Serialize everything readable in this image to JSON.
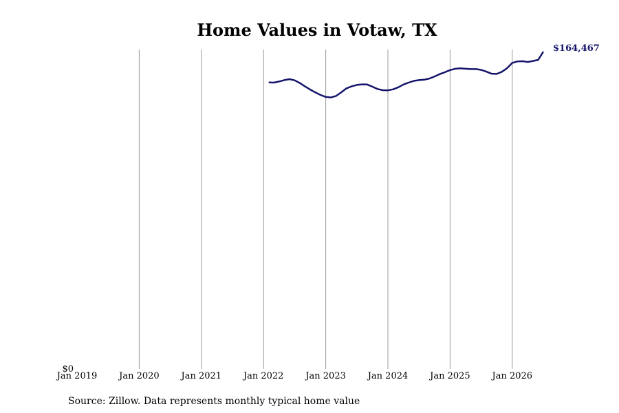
{
  "chart_data": {
    "type": "line",
    "title": "Home Values in Votaw, TX",
    "xlabel": "",
    "ylabel": "",
    "x_tick_labels": [
      "Jan 2019",
      "Jan 2020",
      "Jan 2021",
      "Jan 2022",
      "Jan 2023",
      "Jan 2024",
      "Jan 2025",
      "Jan 2026"
    ],
    "y_tick_labels": [
      "$0"
    ],
    "y_tick_values": [
      0
    ],
    "grid": "vertical",
    "line_color": "#14146b",
    "end_label": "$164,467",
    "series": [
      {
        "x": [
          "2022-02",
          "2022-03",
          "2022-04",
          "2022-05",
          "2022-06",
          "2022-07",
          "2022-08",
          "2022-09",
          "2022-10",
          "2022-11",
          "2022-12",
          "2023-01",
          "2023-02",
          "2023-03",
          "2023-04",
          "2023-05",
          "2023-06",
          "2023-07",
          "2023-08",
          "2023-09",
          "2023-10",
          "2023-11",
          "2023-12",
          "2024-01",
          "2024-02",
          "2024-03",
          "2024-04",
          "2024-05",
          "2024-06",
          "2024-07",
          "2024-08",
          "2024-09",
          "2024-10",
          "2024-11",
          "2024-12",
          "2025-01",
          "2025-02",
          "2025-03",
          "2025-04",
          "2025-05",
          "2025-06",
          "2025-07",
          "2025-08",
          "2025-09",
          "2025-10",
          "2025-11",
          "2025-12",
          "2026-01",
          "2026-02",
          "2026-03",
          "2026-04",
          "2026-05",
          "2026-06",
          "2026-07"
        ],
        "values": [
          148500,
          148400,
          149000,
          149700,
          150200,
          149600,
          148200,
          146400,
          144800,
          143300,
          142000,
          141000,
          140700,
          141500,
          143400,
          145400,
          146500,
          147200,
          147500,
          147400,
          146300,
          145100,
          144500,
          144400,
          144900,
          146000,
          147400,
          148400,
          149300,
          149700,
          149900,
          150500,
          151600,
          152800,
          153800,
          154900,
          155600,
          155800,
          155600,
          155400,
          155400,
          155000,
          154100,
          153000,
          152900,
          154000,
          155900,
          158600,
          159400,
          159500,
          159100,
          159600,
          160200,
          164467
        ]
      }
    ]
  },
  "footer": {
    "source": "Source: Zillow. Data represents monthly typical home value"
  }
}
